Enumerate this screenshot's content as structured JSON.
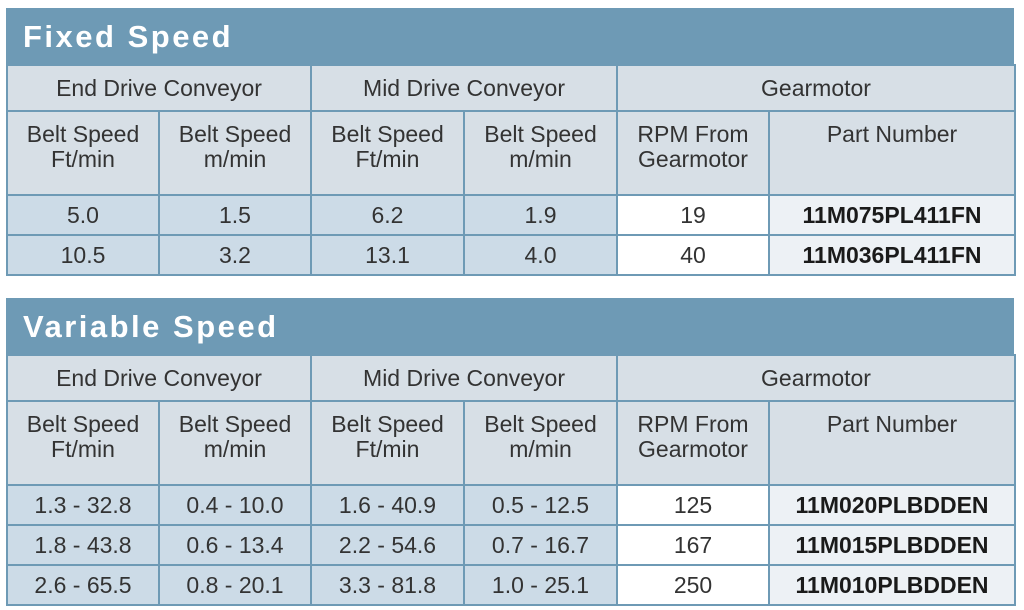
{
  "fixed": {
    "title": "Fixed Speed",
    "groups": [
      "End Drive Conveyor",
      "Mid Drive Conveyor",
      "Gearmotor"
    ],
    "headers": [
      [
        "Belt Speed",
        "Ft/min"
      ],
      [
        "Belt Speed",
        "m/min"
      ],
      [
        "Belt Speed",
        "Ft/min"
      ],
      [
        "Belt Speed",
        "m/min"
      ],
      [
        "RPM From",
        "Gearmotor"
      ],
      [
        "Part Number",
        ""
      ]
    ],
    "rows": [
      [
        "5.0",
        "1.5",
        "6.2",
        "1.9",
        "19",
        "11M075PL411FN"
      ],
      [
        "10.5",
        "3.2",
        "13.1",
        "4.0",
        "40",
        "11M036PL411FN"
      ]
    ]
  },
  "variable": {
    "title": "Variable Speed",
    "groups": [
      "End Drive Conveyor",
      "Mid Drive Conveyor",
      "Gearmotor"
    ],
    "headers": [
      [
        "Belt Speed",
        "Ft/min"
      ],
      [
        "Belt Speed",
        "m/min"
      ],
      [
        "Belt Speed",
        "Ft/min"
      ],
      [
        "Belt Speed",
        "m/min"
      ],
      [
        "RPM From",
        "Gearmotor"
      ],
      [
        "Part Number",
        ""
      ]
    ],
    "rows": [
      [
        "1.3 - 32.8",
        "0.4 - 10.0",
        "1.6 - 40.9",
        "0.5 - 12.5",
        "125",
        "11M020PLBDDEN"
      ],
      [
        "1.8 - 43.8",
        "0.6 - 13.4",
        "2.2 - 54.6",
        "0.7 - 16.7",
        "167",
        "11M015PLBDDEN"
      ],
      [
        "2.6 - 65.5",
        "0.8 - 20.1",
        "3.3 - 81.8",
        "1.0 - 25.1",
        "250",
        "11M010PLBDDEN"
      ]
    ]
  },
  "colors": {
    "title_bar": "#6e9ab5",
    "header_bg": "#d7dfe6",
    "data_blue": "#ccdbe7",
    "part_bg": "#edf1f5"
  }
}
